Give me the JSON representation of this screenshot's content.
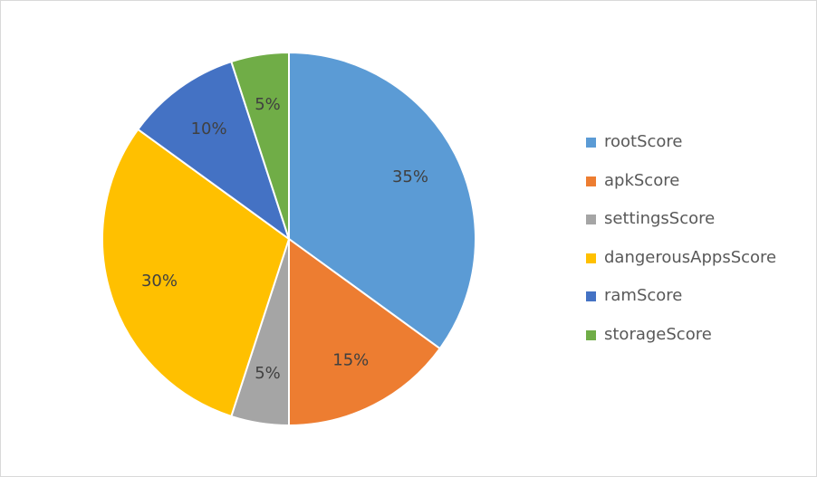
{
  "chart_data": {
    "type": "pie",
    "categories": [
      "rootScore",
      "apkScore",
      "settingsScore",
      "dangerousAppsScore",
      "ramScore",
      "storageScore"
    ],
    "values": [
      35,
      15,
      5,
      30,
      10,
      5
    ],
    "labels": [
      "35%",
      "15%",
      "5%",
      "30%",
      "10%",
      "5%"
    ],
    "colors": [
      "#5b9bd5",
      "#ed7d31",
      "#a5a5a5",
      "#ffc000",
      "#4472c4",
      "#70ad47"
    ],
    "legend_position": "right"
  }
}
